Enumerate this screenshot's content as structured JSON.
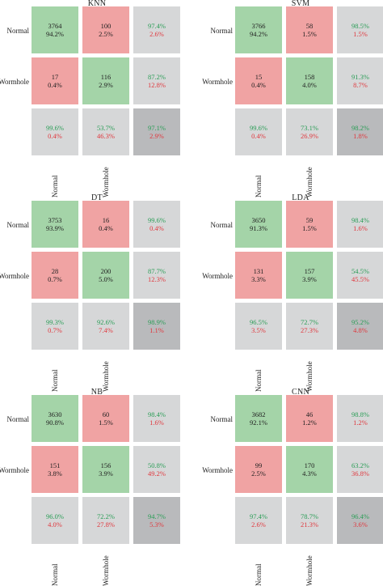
{
  "colors": {
    "correct": "#a4d4a8",
    "incorrect": "#f0a3a3",
    "summary": "#d6d7d8",
    "overall": "#b9babc",
    "green_text": "#2a9d56",
    "red_text": "#e0383e"
  },
  "chart_data": [
    {
      "type": "heatmap",
      "title": "KNN",
      "row_labels": [
        "Normal",
        "Wormhole"
      ],
      "col_labels": [
        "Normal",
        "Wormhole"
      ],
      "cells": [
        [
          {
            "n": "3764",
            "p": "94.2%"
          },
          {
            "n": "100",
            "p": "2.5%"
          }
        ],
        [
          {
            "n": "17",
            "p": "0.4%"
          },
          {
            "n": "116",
            "p": "2.9%"
          }
        ]
      ],
      "row_summary": [
        {
          "g": "97.4%",
          "r": "2.6%"
        },
        {
          "g": "87.2%",
          "r": "12.8%"
        }
      ],
      "col_summary": [
        {
          "g": "99.6%",
          "r": "0.4%"
        },
        {
          "g": "53.7%",
          "r": "46.3%"
        }
      ],
      "overall": {
        "g": "97.1%",
        "r": "2.9%"
      }
    },
    {
      "type": "heatmap",
      "title": "SVM",
      "row_labels": [
        "Normal",
        "Wormhole"
      ],
      "col_labels": [
        "Normal",
        "Wormhole"
      ],
      "cells": [
        [
          {
            "n": "3766",
            "p": "94.2%"
          },
          {
            "n": "58",
            "p": "1.5%"
          }
        ],
        [
          {
            "n": "15",
            "p": "0.4%"
          },
          {
            "n": "158",
            "p": "4.0%"
          }
        ]
      ],
      "row_summary": [
        {
          "g": "98.5%",
          "r": "1.5%"
        },
        {
          "g": "91.3%",
          "r": "8.7%"
        }
      ],
      "col_summary": [
        {
          "g": "99.6%",
          "r": "0.4%"
        },
        {
          "g": "73.1%",
          "r": "26.9%"
        }
      ],
      "overall": {
        "g": "98.2%",
        "r": "1.8%"
      }
    },
    {
      "type": "heatmap",
      "title": "DT",
      "row_labels": [
        "Normal",
        "Wormhole"
      ],
      "col_labels": [
        "Normal",
        "Wormhole"
      ],
      "cells": [
        [
          {
            "n": "3753",
            "p": "93.9%"
          },
          {
            "n": "16",
            "p": "0.4%"
          }
        ],
        [
          {
            "n": "28",
            "p": "0.7%"
          },
          {
            "n": "200",
            "p": "5.0%"
          }
        ]
      ],
      "row_summary": [
        {
          "g": "99.6%",
          "r": "0.4%"
        },
        {
          "g": "87.7%",
          "r": "12.3%"
        }
      ],
      "col_summary": [
        {
          "g": "99.3%",
          "r": "0.7%"
        },
        {
          "g": "92.6%",
          "r": "7.4%"
        }
      ],
      "overall": {
        "g": "98.9%",
        "r": "1.1%"
      }
    },
    {
      "type": "heatmap",
      "title": "LDA",
      "row_labels": [
        "Normal",
        "Wormhole"
      ],
      "col_labels": [
        "Normal",
        "Wormhole"
      ],
      "cells": [
        [
          {
            "n": "3650",
            "p": "91.3%"
          },
          {
            "n": "59",
            "p": "1.5%"
          }
        ],
        [
          {
            "n": "131",
            "p": "3.3%"
          },
          {
            "n": "157",
            "p": "3.9%"
          }
        ]
      ],
      "row_summary": [
        {
          "g": "98.4%",
          "r": "1.6%"
        },
        {
          "g": "54.5%",
          "r": "45.5%"
        }
      ],
      "col_summary": [
        {
          "g": "96.5%",
          "r": "3.5%"
        },
        {
          "g": "72.7%",
          "r": "27.3%"
        }
      ],
      "overall": {
        "g": "95.2%",
        "r": "4.8%"
      }
    },
    {
      "type": "heatmap",
      "title": "NB",
      "row_labels": [
        "Normal",
        "Wormhole"
      ],
      "col_labels": [
        "Normal",
        "Wormhole"
      ],
      "cells": [
        [
          {
            "n": "3630",
            "p": "90.8%"
          },
          {
            "n": "60",
            "p": "1.5%"
          }
        ],
        [
          {
            "n": "151",
            "p": "3.8%"
          },
          {
            "n": "156",
            "p": "3.9%"
          }
        ]
      ],
      "row_summary": [
        {
          "g": "98.4%",
          "r": "1.6%"
        },
        {
          "g": "50.8%",
          "r": "49.2%"
        }
      ],
      "col_summary": [
        {
          "g": "96.0%",
          "r": "4.0%"
        },
        {
          "g": "72.2%",
          "r": "27.8%"
        }
      ],
      "overall": {
        "g": "94.7%",
        "r": "5.3%"
      }
    },
    {
      "type": "heatmap",
      "title": "CNN",
      "row_labels": [
        "Normal",
        "Wormhole"
      ],
      "col_labels": [
        "Normal",
        "Wormhole"
      ],
      "cells": [
        [
          {
            "n": "3682",
            "p": "92.1%"
          },
          {
            "n": "46",
            "p": "1.2%"
          }
        ],
        [
          {
            "n": "99",
            "p": "2.5%"
          },
          {
            "n": "170",
            "p": "4.3%"
          }
        ]
      ],
      "row_summary": [
        {
          "g": "98.8%",
          "r": "1.2%"
        },
        {
          "g": "63.2%",
          "r": "36.8%"
        }
      ],
      "col_summary": [
        {
          "g": "97.4%",
          "r": "2.6%"
        },
        {
          "g": "78.7%",
          "r": "21.3%"
        }
      ],
      "overall": {
        "g": "96.4%",
        "r": "3.6%"
      }
    }
  ]
}
